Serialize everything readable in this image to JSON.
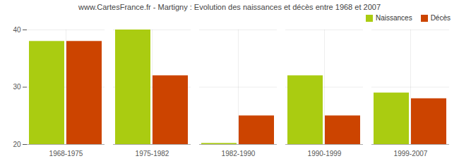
{
  "chart_data": {
    "type": "bar",
    "title": "www.CartesFrance.fr - Martigny : Evolution des naissances et décès entre 1968 et 2007",
    "categories": [
      "1968-1975",
      "1975-1982",
      "1982-1990",
      "1990-1999",
      "1999-2007"
    ],
    "series": [
      {
        "name": "Naissances",
        "color": "#aacc11",
        "values": [
          38,
          40,
          20.2,
          32,
          29
        ]
      },
      {
        "name": "Décès",
        "color": "#cc4400",
        "values": [
          38,
          32,
          25,
          25,
          28
        ]
      }
    ],
    "ylim": [
      20,
      40
    ],
    "yticks": [
      20,
      30,
      40
    ],
    "grid": true,
    "legend": "upper right"
  }
}
